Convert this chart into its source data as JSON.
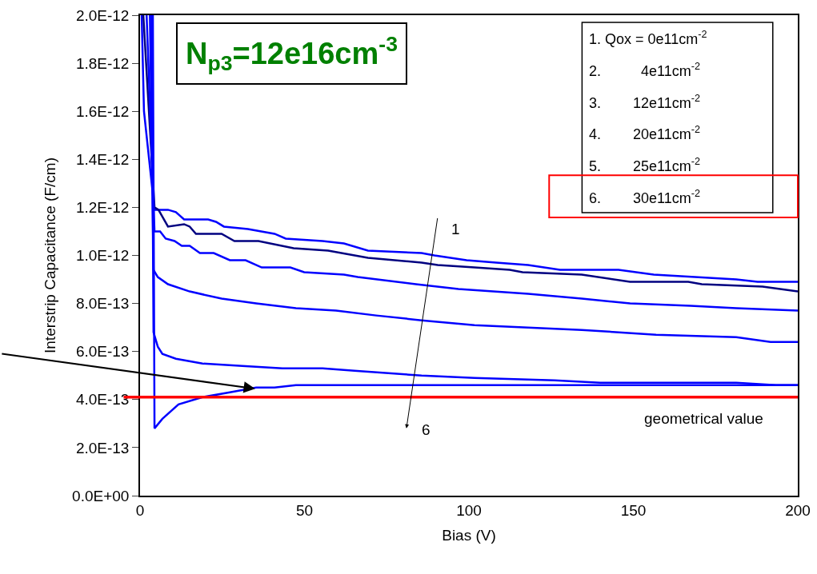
{
  "chart_data": {
    "type": "line",
    "title": "N$_{p3}$=12e16cm$^{-3}$",
    "xlabel": "Bias (V)",
    "ylabel": "Interstrip Capacitance (F/cm)",
    "xlim": [
      0,
      200
    ],
    "xticks": [
      0,
      50,
      100,
      150,
      200
    ],
    "ylim": [
      0,
      2e-12
    ],
    "yticks": [
      {
        "value": 0,
        "label": "0.0E+00"
      },
      {
        "value": 2e-13,
        "label": "2.0E-13"
      },
      {
        "value": 4e-13,
        "label": "4.0E-13"
      },
      {
        "value": 6e-13,
        "label": "6.0E-13"
      },
      {
        "value": 8e-13,
        "label": "8.0E-13"
      },
      {
        "value": 1e-12,
        "label": "1.0E-12"
      },
      {
        "value": 1.2e-12,
        "label": "1.2E-12"
      },
      {
        "value": 1.4e-12,
        "label": "1.4E-12"
      },
      {
        "value": 1.6e-12,
        "label": "1.6E-12"
      },
      {
        "value": 1.8e-12,
        "label": "1.8E-12"
      },
      {
        "value": 2e-12,
        "label": "2.0E-12"
      }
    ],
    "marker": "none",
    "line_style": "solid",
    "series": [
      {
        "color": "#0000ff",
        "x": [
          0.5,
          1.2,
          4.4,
          8.5,
          10.9,
          13.4,
          20.7,
          23.1,
          25.5,
          32.8,
          40.9,
          44.3,
          55.5,
          62,
          69.3,
          85.6,
          89.5,
          99.3,
          108.3,
          118,
          127.7,
          142.3,
          145.5,
          156.2,
          181.3,
          187.8,
          200
        ],
        "values": [
          2e-12,
          1.6e-12,
          1.19e-12,
          1.19e-12,
          1.18e-12,
          1.15e-12,
          1.15e-12,
          1.14e-12,
          1.12e-12,
          1.11e-12,
          1.09e-12,
          1.07e-12,
          1.06e-12,
          1.05e-12,
          1.02e-12,
          1.01e-12,
          1e-12,
          9.8e-13,
          9.7e-13,
          9.6e-13,
          9.4e-13,
          9.4e-13,
          9.4e-13,
          9.2e-13,
          9e-13,
          8.9e-13,
          8.9e-13
        ]
      },
      {
        "color": "#000080",
        "x": [
          1,
          4.4,
          5.6,
          8.5,
          13.4,
          15.1,
          17,
          24.8,
          28.7,
          36,
          46.7,
          57.2,
          69.3,
          85.6,
          90.5,
          101.7,
          112.4,
          116.3,
          134.3,
          149,
          166.7,
          170.8,
          189.3,
          200
        ],
        "values": [
          2e-12,
          1.2e-12,
          1.19e-12,
          1.12e-12,
          1.13e-12,
          1.12e-12,
          1.09e-12,
          1.09e-12,
          1.06e-12,
          1.06e-12,
          1.03e-12,
          1.02e-12,
          9.9e-13,
          9.7e-13,
          9.6e-13,
          9.5e-13,
          9.4e-13,
          9.3e-13,
          9.2e-13,
          8.9e-13,
          8.9e-13,
          8.8e-13,
          8.7e-13,
          8.5e-13
        ]
      },
      {
        "color": "#0000ff",
        "x": [
          2,
          4.4,
          6.1,
          7.8,
          10.5,
          12.7,
          15.1,
          18.2,
          22.4,
          27.3,
          32.1,
          37,
          45.7,
          49.9,
          62,
          66.2,
          83.9,
          96.8,
          118,
          134.3,
          149,
          167.4,
          181.3,
          200
        ],
        "values": [
          2e-12,
          1.1e-12,
          1.1e-12,
          1.07e-12,
          1.06e-12,
          1.04e-12,
          1.04e-12,
          1.01e-12,
          1.01e-12,
          9.8e-13,
          9.8e-13,
          9.5e-13,
          9.5e-13,
          9.3e-13,
          9.2e-13,
          9.1e-13,
          8.8e-13,
          8.6e-13,
          8.4e-13,
          8.2e-13,
          8e-13,
          7.9e-13,
          7.8e-13,
          7.7e-13
        ]
      },
      {
        "color": "#0000ff",
        "x": [
          3,
          4.1,
          5.4,
          8.5,
          15.1,
          24.8,
          35.3,
          47.4,
          59.6,
          71.8,
          85.6,
          101.7,
          118,
          134.3,
          156.9,
          181.3,
          191.7,
          200
        ],
        "values": [
          2e-12,
          9.4e-13,
          9.1e-13,
          8.8e-13,
          8.5e-13,
          8.2e-13,
          8e-13,
          7.8e-13,
          7.7e-13,
          7.5e-13,
          7.3e-13,
          7.1e-13,
          7e-13,
          6.9e-13,
          6.7e-13,
          6.6e-13,
          6.4e-13,
          6.4e-13
        ]
      },
      {
        "color": "#0000ff",
        "x": [
          3.5,
          4.1,
          5.4,
          6.8,
          10.9,
          19,
          31.1,
          43.3,
          55.5,
          65.2,
          85.6,
          101.7,
          126,
          139.9,
          181.3,
          193.4,
          200
        ],
        "values": [
          2e-12,
          6.8e-13,
          6.2e-13,
          5.9e-13,
          5.7e-13,
          5.5e-13,
          5.4e-13,
          5.3e-13,
          5.3e-13,
          5.2e-13,
          5e-13,
          4.9e-13,
          4.8e-13,
          4.7e-13,
          4.7e-13,
          4.6e-13,
          4.6e-13
        ]
      },
      {
        "color": "#0000ff",
        "x": [
          3.9,
          4.4,
          6.8,
          11.7,
          19,
          27.3,
          35.3,
          40.9,
          47.4,
          200
        ],
        "values": [
          2e-12,
          2.8e-13,
          3.2e-13,
          3.8e-13,
          4.1e-13,
          4.3e-13,
          4.5e-13,
          4.5e-13,
          4.6e-13,
          4.6e-13
        ]
      }
    ],
    "ref_lines": [
      {
        "axis": "y",
        "value": 4.1e-13,
        "label": "geometrical value",
        "color": "#ff0000"
      }
    ],
    "annotations": [
      "1. Qox = 0e11cm$^{-2}$",
      "2.          4e11cm$^{-2}$",
      "3.        12e11cm$^{-2}$",
      "4.        20e11cm$^{-2}$",
      "5.        25e11cm$^{-2}$",
      "6.        30e11cm$^{-2}$",
      "1",
      "6"
    ]
  }
}
